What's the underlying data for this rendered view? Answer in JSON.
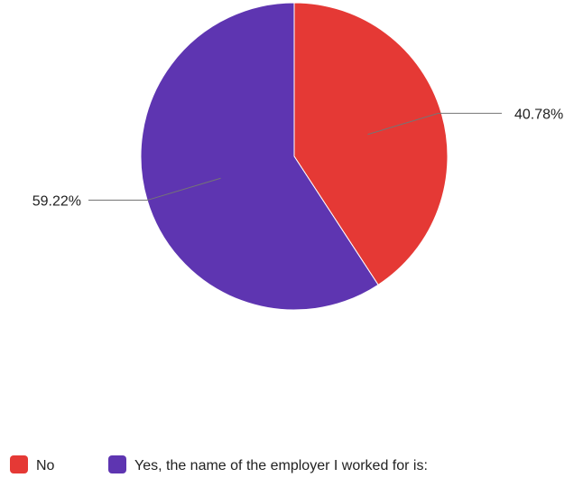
{
  "chart_data": {
    "type": "pie",
    "start_angle_deg": 0,
    "direction": "clockwise",
    "slices": [
      {
        "label": "No",
        "value": 40.78,
        "display": "40.78%",
        "color": "#e53935"
      },
      {
        "label": "Yes, the name of the employer I worked for is:",
        "value": 59.22,
        "display": "59.22%",
        "color": "#5e35b1"
      }
    ],
    "legend_position": "bottom-left"
  }
}
